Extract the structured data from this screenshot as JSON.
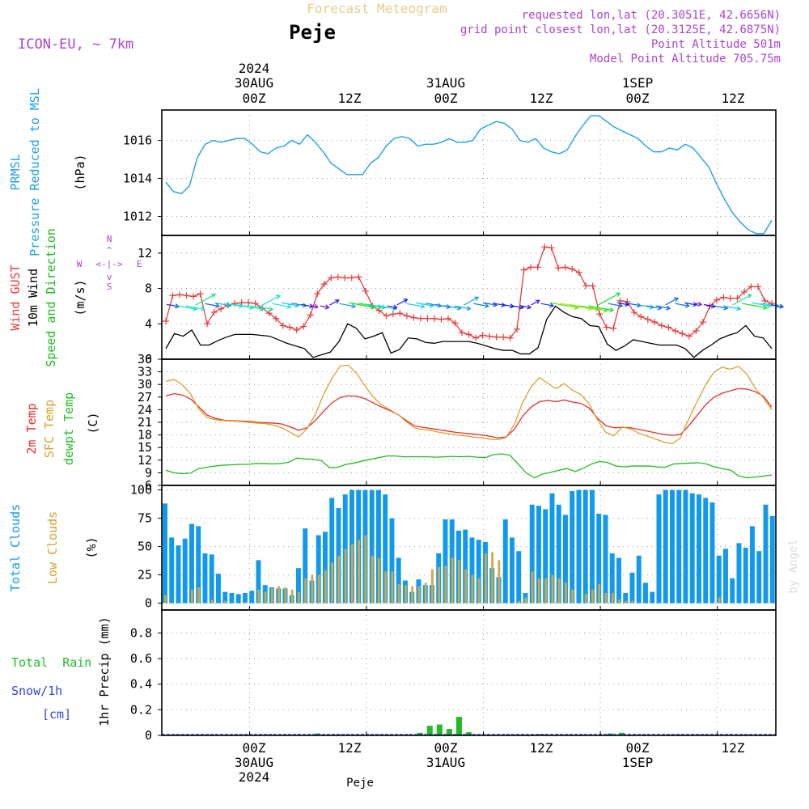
{
  "header": {
    "subtitle": "Forecast Meteogram",
    "location": "Peje",
    "model": "ICON-EU, ~ 7km",
    "requested": "requested lon,lat (20.3051E, 42.6656N)",
    "gridpoint": "grid point closest lon,lat (20.3125E, 42.6875N)",
    "point_alt": "Point Altitude 501m",
    "model_alt": "Model Point Altitude 705.75m"
  },
  "axis": {
    "top_year": "2024",
    "top_days": [
      "30AUG",
      "31AUG",
      "1SEP"
    ],
    "top_hours": [
      "00Z",
      "12Z",
      "00Z",
      "12Z",
      "00Z",
      "12Z"
    ],
    "bottom_hours": [
      "00Z",
      "12Z",
      "00Z",
      "12Z",
      "00Z",
      "12Z"
    ],
    "bottom_days": [
      "30AUG",
      "31AUG",
      "1SEP"
    ],
    "bottom_year": "2024",
    "footer_name": "Peje",
    "watermark": "by Angel"
  },
  "legends": {
    "prmsl_1": "PRMSL",
    "prmsl_2": "Pressure Reduced to MSL",
    "prmsl_unit": "(hPa)",
    "wind_1": "Wind GUST",
    "wind_2": "10m Wind",
    "wind_3": "Speed and Direction",
    "wind_unit": "(m/s)",
    "compass_n": "N",
    "compass_s": "S",
    "compass_w": "W",
    "compass_e": "E",
    "compass_row1": "<-|->",
    "temp_1": "2m Temp",
    "temp_2": "SFC Temp",
    "temp_3": "dewpt Temp",
    "temp_unit": "(C)",
    "cloud_1": "Total Clouds",
    "cloud_2": "Low Clouds",
    "cloud_unit": "(%)",
    "rain_1": "Total  Rain",
    "rain_2": "Snow/1h",
    "rain_3": "[cm]",
    "rain_unit": "1hr Precip (mm)"
  },
  "colors": {
    "pressure": "#1ea0e6",
    "gust": "#e83c3c",
    "wind": "#000000",
    "t2m": "#e03030",
    "sfc": "#d9a030",
    "dew": "#22bb22",
    "total_cloud": "#1199ee",
    "low_cloud": "#ccaa44",
    "rain": "#22bb22",
    "snow": "#3344dd",
    "meta": "#aa44cc",
    "title_faint": "#eacb8a"
  },
  "chart_data": [
    {
      "type": "line",
      "title": "PRMSL Pressure Reduced to MSL",
      "ylabel": "(hPa)",
      "ylim": [
        1011,
        1017.6
      ],
      "yticks": [
        1012,
        1014,
        1016
      ],
      "time_range_hours": [
        -9,
        54
      ],
      "series": [
        {
          "name": "PRMSL",
          "values": [
            1013.8,
            1013.3,
            1013.2,
            1013.6,
            1015.1,
            1015.8,
            1016.0,
            1015.9,
            1016.0,
            1016.1,
            1016.1,
            1015.8,
            1015.4,
            1015.3,
            1015.6,
            1015.7,
            1016.0,
            1015.8,
            1016.3,
            1015.9,
            1015.4,
            1014.8,
            1014.5,
            1014.2,
            1014.2,
            1014.2,
            1014.8,
            1015.1,
            1015.7,
            1016.1,
            1016.2,
            1016.1,
            1015.7,
            1015.8,
            1015.8,
            1015.9,
            1016.1,
            1015.9,
            1015.9,
            1016.0,
            1016.6,
            1016.8,
            1017.0,
            1016.9,
            1016.6,
            1016.0,
            1015.9,
            1016.1,
            1015.6,
            1015.4,
            1015.3,
            1015.5,
            1016.2,
            1016.8,
            1017.3,
            1017.3,
            1017.0,
            1016.7,
            1016.5,
            1016.3,
            1016.1,
            1015.7,
            1015.4,
            1015.4,
            1015.6,
            1015.5,
            1015.8,
            1015.6,
            1015.1,
            1014.6,
            1013.7,
            1012.9,
            1012.2,
            1011.7,
            1011.3,
            1011.1,
            1011.1,
            1011.8
          ]
        }
      ]
    },
    {
      "type": "line",
      "title": "Wind GUST / 10m Wind Speed and Direction",
      "ylabel": "(m/s)",
      "ylim": [
        0,
        14
      ],
      "yticks": [
        0,
        4,
        8,
        12
      ],
      "series": [
        {
          "name": "Wind GUST",
          "values": [
            4.3,
            7.2,
            7.3,
            7.2,
            7.1,
            7.4,
            4.0,
            5.3,
            5.7,
            6.1,
            6.3,
            6.4,
            6.4,
            6.3,
            5.8,
            5.2,
            4.6,
            3.8,
            3.6,
            3.3,
            3.7,
            5.0,
            7.4,
            8.5,
            9.2,
            9.3,
            9.2,
            9.2,
            9.3,
            7.7,
            6.0,
            5.5,
            4.9,
            5.1,
            5.2,
            4.9,
            4.7,
            4.6,
            4.6,
            4.6,
            4.5,
            4.6,
            4.1,
            3.0,
            2.8,
            2.4,
            2.7,
            2.6,
            2.5,
            2.5,
            2.4,
            3.4,
            10.1,
            10.4,
            10.4,
            12.7,
            12.6,
            10.3,
            10.4,
            10.2,
            9.8,
            8.3,
            8.3,
            5.1,
            3.6,
            3.5,
            6.6,
            6.5,
            5.3,
            4.8,
            4.5,
            4.2,
            3.8,
            3.6,
            3.2,
            2.9,
            2.6,
            3.2,
            4.2,
            6.0,
            6.7,
            7.0,
            6.9,
            6.9,
            7.6,
            8.2,
            8.2,
            6.6,
            6.3
          ]
        },
        {
          "name": "10m Wind",
          "values": [
            1.2,
            2.9,
            2.6,
            3.3,
            1.6,
            1.6,
            2.1,
            2.5,
            2.8,
            2.8,
            2.8,
            2.7,
            2.6,
            2.2,
            1.8,
            1.5,
            1.2,
            0.2,
            0.5,
            0.8,
            2.0,
            4.0,
            3.5,
            2.3,
            2.6,
            3.0,
            0.7,
            1.1,
            2.4,
            2.3,
            1.9,
            1.8,
            2.0,
            2.0,
            2.0,
            2.0,
            1.8,
            1.5,
            1.2,
            1.0,
            1.0,
            0.6,
            0.6,
            1.3,
            4.5,
            6.0,
            5.3,
            4.8,
            4.6,
            3.8,
            3.7,
            1.7,
            1.0,
            1.5,
            2.2,
            2.0,
            1.8,
            1.6,
            1.6,
            1.6,
            1.2,
            0.2,
            1.0,
            1.6,
            2.3,
            2.7,
            3.0,
            3.8,
            2.6,
            2.4,
            1.2
          ]
        }
      ]
    },
    {
      "type": "line",
      "title": "2m Temp / SFC Temp / dewpt Temp",
      "ylabel": "(C)",
      "ylim": [
        6,
        36
      ],
      "yticks": [
        6,
        9,
        12,
        15,
        18,
        21,
        24,
        27,
        30,
        33,
        36
      ],
      "series": [
        {
          "name": "2m Temp",
          "values": [
            27.3,
            27.8,
            27.5,
            26.5,
            24.6,
            22.7,
            21.9,
            21.5,
            21.4,
            21.3,
            21.2,
            21.0,
            20.9,
            20.8,
            20.6,
            19.9,
            19.1,
            19.7,
            21.4,
            23.6,
            25.6,
            26.9,
            27.3,
            27.2,
            26.6,
            25.6,
            24.6,
            23.8,
            22.8,
            21.4,
            20.1,
            19.8,
            19.5,
            19.2,
            18.9,
            18.6,
            18.4,
            18.2,
            18.0,
            17.7,
            17.3,
            17.5,
            19.4,
            22.5,
            24.6,
            25.9,
            26.2,
            25.9,
            26.3,
            25.8,
            25.5,
            24.4,
            22.0,
            20.2,
            19.7,
            19.8,
            19.7,
            19.3,
            18.9,
            18.5,
            18.1,
            17.9,
            18.1,
            20.2,
            22.6,
            25.1,
            26.9,
            27.9,
            28.5,
            29.0,
            28.9,
            28.3,
            27.2,
            24.6
          ]
        },
        {
          "name": "SFC Temp",
          "values": [
            30.7,
            31.2,
            29.9,
            27.7,
            24.1,
            22.1,
            21.6,
            21.4,
            21.3,
            21.2,
            21.0,
            20.8,
            20.7,
            20.3,
            19.7,
            18.6,
            17.5,
            19.5,
            22.8,
            27.6,
            31.4,
            34.4,
            34.6,
            32.6,
            29.6,
            27.0,
            25.1,
            24.0,
            22.8,
            21.1,
            19.6,
            19.3,
            19.0,
            18.6,
            18.3,
            18.0,
            17.8,
            17.5,
            17.3,
            17.0,
            16.9,
            17.4,
            20.6,
            25.8,
            29.4,
            31.6,
            30.3,
            29.0,
            30.2,
            28.6,
            27.6,
            25.4,
            21.6,
            18.6,
            17.8,
            19.9,
            19.4,
            18.4,
            17.7,
            17.0,
            16.3,
            15.9,
            17.3,
            21.8,
            25.9,
            29.8,
            32.8,
            34.1,
            33.6,
            34.3,
            32.4,
            29.1,
            26.8,
            24.0
          ]
        },
        {
          "name": "dewpt Temp",
          "values": [
            9.6,
            9.0,
            8.8,
            8.9,
            10.0,
            10.3,
            10.6,
            10.8,
            10.9,
            11.0,
            11.0,
            11.2,
            11.2,
            11.1,
            11.2,
            11.5,
            12.5,
            12.3,
            12.2,
            11.9,
            10.2,
            10.3,
            11.0,
            11.3,
            11.8,
            12.2,
            12.6,
            13.0,
            13.0,
            12.8,
            12.8,
            12.8,
            12.8,
            12.7,
            12.8,
            12.9,
            12.8,
            12.9,
            12.7,
            12.6,
            13.3,
            13.5,
            13.2,
            11.1,
            9.0,
            7.8,
            8.7,
            9.1,
            9.6,
            10.0,
            9.3,
            10.1,
            11.1,
            11.7,
            11.4,
            10.6,
            10.4,
            10.6,
            10.6,
            10.6,
            10.4,
            10.3,
            11.1,
            11.2,
            11.3,
            11.4,
            11.1,
            10.4,
            10.0,
            9.6,
            8.2,
            7.8,
            8.0,
            8.2,
            8.5
          ]
        }
      ]
    },
    {
      "type": "bar",
      "title": "Total Clouds / Low Clouds",
      "ylabel": "(%)",
      "ylim": [
        -6,
        104
      ],
      "yticks": [
        0,
        25,
        50,
        75,
        100
      ],
      "series": [
        {
          "name": "Total Clouds",
          "values": [
            88,
            58,
            51,
            57,
            70,
            68,
            44,
            43,
            26,
            10,
            9,
            8,
            9,
            11,
            38,
            16,
            14,
            13,
            13,
            7,
            31,
            66,
            20,
            60,
            63,
            93,
            84,
            96,
            100,
            100,
            100,
            100,
            100,
            96,
            75,
            40,
            20,
            10,
            21,
            16,
            16,
            44,
            74,
            74,
            64,
            65,
            58,
            56,
            54,
            31,
            23,
            74,
            58,
            46,
            9,
            87,
            86,
            83,
            97,
            87,
            78,
            99,
            100,
            100,
            100,
            79,
            78,
            44,
            40,
            9,
            27,
            42,
            18,
            10,
            96,
            100,
            100,
            100,
            100,
            97,
            96,
            93,
            89,
            42,
            48,
            22,
            53,
            49,
            68,
            46,
            87,
            77
          ]
        },
        {
          "name": "Low Clouds",
          "values": [
            7,
            0,
            0,
            0,
            12,
            14,
            0,
            3,
            0,
            2,
            0,
            0,
            1,
            0,
            12,
            10,
            13,
            15,
            14,
            12,
            10,
            22,
            25,
            25,
            29,
            36,
            42,
            48,
            52,
            56,
            60,
            42,
            40,
            28,
            28,
            17,
            16,
            15,
            15,
            18,
            30,
            32,
            33,
            40,
            38,
            30,
            25,
            22,
            44,
            45,
            38,
            0,
            0,
            2,
            5,
            28,
            22,
            22,
            25,
            22,
            18,
            12,
            0,
            8,
            12,
            17,
            9,
            9,
            3,
            2,
            2,
            0,
            0,
            0,
            0,
            0,
            0,
            0,
            0,
            0,
            0,
            0,
            0,
            5,
            0,
            0,
            0,
            0,
            0,
            0,
            0,
            0
          ]
        }
      ]
    },
    {
      "type": "bar",
      "title": "1hr Precip",
      "ylabel": "1hr Precip (mm)",
      "ylim": [
        0,
        0.98
      ],
      "yticks": [
        0,
        0.2,
        0.4,
        0.6,
        0.8
      ],
      "series": [
        {
          "name": "Total Rain",
          "values": [
            0.015,
            0.02,
            0.075,
            0.085,
            0.05,
            0.145,
            0.025,
            0.01,
            0.015,
            0.02
          ]
        },
        {
          "name": "Snow/1h",
          "values": [
            0,
            0,
            0,
            0,
            0,
            0,
            0,
            0,
            0,
            0
          ]
        }
      ]
    }
  ]
}
